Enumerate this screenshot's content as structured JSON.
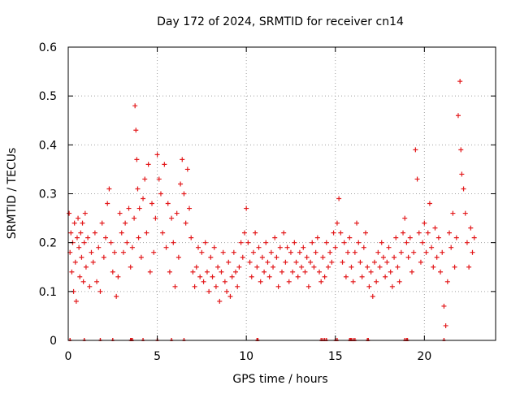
{
  "chart_data": {
    "type": "scatter",
    "title": "Day 172 of 2024, SRMTID for receiver cn14",
    "xlabel": "GPS time / hours",
    "ylabel": "SRMTID / TECUs",
    "xlim": [
      0,
      24
    ],
    "ylim": [
      0,
      0.6
    ],
    "xticks": [
      0,
      5,
      10,
      15,
      20
    ],
    "yticks": [
      0,
      0.1,
      0.2,
      0.3,
      0.4,
      0.5,
      0.6
    ],
    "x_tick_labels": [
      "0",
      "5",
      "10",
      "15",
      "20"
    ],
    "y_tick_labels": [
      "0",
      "0.1",
      "0.2",
      "0.3",
      "0.4",
      "0.5",
      "0.6"
    ],
    "grid": true,
    "marker": "+",
    "series": [
      {
        "name": "SRMTID",
        "color": "#e31a1c",
        "points": [
          [
            0.05,
            0.26
          ],
          [
            0.1,
            0.18
          ],
          [
            0.15,
            0.22
          ],
          [
            0.2,
            0.14
          ],
          [
            0.25,
            0.2
          ],
          [
            0.3,
            0.1
          ],
          [
            0.35,
            0.24
          ],
          [
            0.4,
            0.16
          ],
          [
            0.45,
            0.08
          ],
          [
            0.5,
            0.21
          ],
          [
            0.55,
            0.25
          ],
          [
            0.6,
            0.19
          ],
          [
            0.65,
            0.13
          ],
          [
            0.7,
            0.22
          ],
          [
            0.75,
            0.17
          ],
          [
            0.8,
            0.24
          ],
          [
            0.85,
            0.12
          ],
          [
            0.9,
            0.2
          ],
          [
            0.95,
            0.26
          ],
          [
            1.0,
            0.15
          ],
          [
            1.1,
            0.21
          ],
          [
            1.2,
            0.11
          ],
          [
            1.3,
            0.18
          ],
          [
            1.4,
            0.16
          ],
          [
            1.5,
            0.22
          ],
          [
            1.6,
            0.12
          ],
          [
            1.7,
            0.19
          ],
          [
            1.8,
            0.1
          ],
          [
            1.9,
            0.24
          ],
          [
            2.0,
            0.17
          ],
          [
            2.1,
            0.21
          ],
          [
            2.2,
            0.28
          ],
          [
            2.3,
            0.31
          ],
          [
            2.4,
            0.2
          ],
          [
            2.5,
            0.14
          ],
          [
            2.6,
            0.18
          ],
          [
            2.7,
            0.09
          ],
          [
            2.8,
            0.13
          ],
          [
            2.9,
            0.26
          ],
          [
            3.0,
            0.22
          ],
          [
            3.1,
            0.18
          ],
          [
            3.2,
            0.24
          ],
          [
            3.3,
            0.2
          ],
          [
            3.4,
            0.27
          ],
          [
            3.5,
            0.15
          ],
          [
            3.6,
            0.19
          ],
          [
            3.7,
            0.25
          ],
          [
            3.75,
            0.48
          ],
          [
            3.8,
            0.43
          ],
          [
            3.85,
            0.37
          ],
          [
            3.9,
            0.31
          ],
          [
            3.95,
            0.21
          ],
          [
            4.0,
            0.27
          ],
          [
            4.1,
            0.17
          ],
          [
            4.2,
            0.29
          ],
          [
            4.3,
            0.33
          ],
          [
            4.4,
            0.22
          ],
          [
            4.5,
            0.36
          ],
          [
            4.6,
            0.14
          ],
          [
            4.7,
            0.28
          ],
          [
            4.8,
            0.18
          ],
          [
            4.9,
            0.25
          ],
          [
            5.0,
            0.38
          ],
          [
            5.1,
            0.33
          ],
          [
            5.2,
            0.3
          ],
          [
            5.3,
            0.22
          ],
          [
            5.4,
            0.36
          ],
          [
            5.5,
            0.19
          ],
          [
            5.6,
            0.28
          ],
          [
            5.7,
            0.14
          ],
          [
            5.8,
            0.25
          ],
          [
            5.9,
            0.2
          ],
          [
            6.0,
            0.11
          ],
          [
            6.1,
            0.26
          ],
          [
            6.2,
            0.17
          ],
          [
            6.3,
            0.32
          ],
          [
            6.4,
            0.37
          ],
          [
            6.5,
            0.3
          ],
          [
            6.6,
            0.24
          ],
          [
            6.7,
            0.35
          ],
          [
            6.8,
            0.27
          ],
          [
            6.9,
            0.21
          ],
          [
            7.0,
            0.14
          ],
          [
            7.1,
            0.11
          ],
          [
            7.2,
            0.15
          ],
          [
            7.3,
            0.19
          ],
          [
            7.4,
            0.13
          ],
          [
            7.5,
            0.18
          ],
          [
            7.6,
            0.12
          ],
          [
            7.7,
            0.2
          ],
          [
            7.8,
            0.14
          ],
          [
            7.9,
            0.1
          ],
          [
            8.0,
            0.17
          ],
          [
            8.1,
            0.13
          ],
          [
            8.2,
            0.19
          ],
          [
            8.3,
            0.11
          ],
          [
            8.4,
            0.15
          ],
          [
            8.5,
            0.08
          ],
          [
            8.6,
            0.14
          ],
          [
            8.7,
            0.18
          ],
          [
            8.8,
            0.12
          ],
          [
            8.9,
            0.1
          ],
          [
            9.0,
            0.16
          ],
          [
            9.1,
            0.09
          ],
          [
            9.2,
            0.13
          ],
          [
            9.3,
            0.18
          ],
          [
            9.4,
            0.14
          ],
          [
            9.5,
            0.11
          ],
          [
            9.6,
            0.15
          ],
          [
            9.7,
            0.2
          ],
          [
            9.8,
            0.17
          ],
          [
            9.9,
            0.22
          ],
          [
            10.0,
            0.27
          ],
          [
            10.1,
            0.2
          ],
          [
            10.2,
            0.16
          ],
          [
            10.3,
            0.13
          ],
          [
            10.4,
            0.18
          ],
          [
            10.5,
            0.22
          ],
          [
            10.6,
            0.15
          ],
          [
            10.7,
            0.19
          ],
          [
            10.8,
            0.12
          ],
          [
            10.9,
            0.17
          ],
          [
            11.0,
            0.14
          ],
          [
            11.1,
            0.2
          ],
          [
            11.2,
            0.16
          ],
          [
            11.3,
            0.13
          ],
          [
            11.4,
            0.18
          ],
          [
            11.5,
            0.15
          ],
          [
            11.6,
            0.21
          ],
          [
            11.7,
            0.17
          ],
          [
            11.8,
            0.11
          ],
          [
            11.9,
            0.19
          ],
          [
            12.0,
            0.14
          ],
          [
            12.1,
            0.22
          ],
          [
            12.2,
            0.16
          ],
          [
            12.3,
            0.19
          ],
          [
            12.4,
            0.12
          ],
          [
            12.5,
            0.18
          ],
          [
            12.6,
            0.14
          ],
          [
            12.7,
            0.2
          ],
          [
            12.8,
            0.16
          ],
          [
            12.9,
            0.13
          ],
          [
            13.0,
            0.18
          ],
          [
            13.1,
            0.15
          ],
          [
            13.2,
            0.19
          ],
          [
            13.3,
            0.14
          ],
          [
            13.4,
            0.17
          ],
          [
            13.5,
            0.11
          ],
          [
            13.6,
            0.16
          ],
          [
            13.7,
            0.2
          ],
          [
            13.8,
            0.15
          ],
          [
            13.9,
            0.18
          ],
          [
            14.0,
            0.21
          ],
          [
            14.1,
            0.14
          ],
          [
            14.2,
            0.12
          ],
          [
            14.3,
            0.17
          ],
          [
            14.4,
            0.13
          ],
          [
            14.5,
            0.2
          ],
          [
            14.6,
            0.15
          ],
          [
            14.7,
            0.18
          ],
          [
            14.8,
            0.16
          ],
          [
            14.9,
            0.22
          ],
          [
            15.0,
            0.19
          ],
          [
            15.1,
            0.24
          ],
          [
            15.2,
            0.29
          ],
          [
            15.3,
            0.22
          ],
          [
            15.4,
            0.16
          ],
          [
            15.5,
            0.2
          ],
          [
            15.6,
            0.13
          ],
          [
            15.7,
            0.18
          ],
          [
            15.8,
            0.21
          ],
          [
            15.9,
            0.15
          ],
          [
            16.0,
            0.12
          ],
          [
            16.1,
            0.18
          ],
          [
            16.2,
            0.24
          ],
          [
            16.3,
            0.2
          ],
          [
            16.4,
            0.16
          ],
          [
            16.5,
            0.13
          ],
          [
            16.6,
            0.19
          ],
          [
            16.7,
            0.22
          ],
          [
            16.8,
            0.15
          ],
          [
            16.9,
            0.11
          ],
          [
            17.0,
            0.14
          ],
          [
            17.1,
            0.09
          ],
          [
            17.2,
            0.16
          ],
          [
            17.3,
            0.12
          ],
          [
            17.4,
            0.18
          ],
          [
            17.5,
            0.15
          ],
          [
            17.6,
            0.2
          ],
          [
            17.7,
            0.17
          ],
          [
            17.8,
            0.13
          ],
          [
            17.9,
            0.16
          ],
          [
            18.0,
            0.19
          ],
          [
            18.1,
            0.14
          ],
          [
            18.2,
            0.11
          ],
          [
            18.3,
            0.17
          ],
          [
            18.4,
            0.21
          ],
          [
            18.5,
            0.15
          ],
          [
            18.6,
            0.12
          ],
          [
            18.7,
            0.18
          ],
          [
            18.8,
            0.22
          ],
          [
            18.9,
            0.25
          ],
          [
            19.0,
            0.2
          ],
          [
            19.1,
            0.17
          ],
          [
            19.2,
            0.21
          ],
          [
            19.3,
            0.14
          ],
          [
            19.4,
            0.18
          ],
          [
            19.5,
            0.39
          ],
          [
            19.6,
            0.33
          ],
          [
            19.7,
            0.22
          ],
          [
            19.8,
            0.16
          ],
          [
            19.9,
            0.2
          ],
          [
            20.0,
            0.24
          ],
          [
            20.1,
            0.18
          ],
          [
            20.2,
            0.22
          ],
          [
            20.3,
            0.28
          ],
          [
            20.4,
            0.19
          ],
          [
            20.5,
            0.15
          ],
          [
            20.6,
            0.23
          ],
          [
            20.7,
            0.17
          ],
          [
            20.8,
            0.21
          ],
          [
            20.9,
            0.14
          ],
          [
            21.0,
            0.18
          ],
          [
            21.1,
            0.07
          ],
          [
            21.2,
            0.03
          ],
          [
            21.3,
            0.12
          ],
          [
            21.4,
            0.22
          ],
          [
            21.5,
            0.19
          ],
          [
            21.6,
            0.26
          ],
          [
            21.7,
            0.15
          ],
          [
            21.8,
            0.21
          ],
          [
            21.9,
            0.46
          ],
          [
            22.0,
            0.53
          ],
          [
            22.05,
            0.39
          ],
          [
            22.1,
            0.34
          ],
          [
            22.2,
            0.31
          ],
          [
            22.3,
            0.26
          ],
          [
            22.4,
            0.2
          ],
          [
            22.5,
            0.15
          ],
          [
            22.6,
            0.23
          ],
          [
            22.7,
            0.18
          ],
          [
            22.8,
            0.21
          ]
        ]
      }
    ],
    "zero_markers_x": [
      0.1,
      0.9,
      1.8,
      2.5,
      3.5,
      3.55,
      3.6,
      4.2,
      5.0,
      5.8,
      6.5,
      10.6,
      10.65,
      14.2,
      14.3,
      14.4,
      14.5,
      15.0,
      15.1,
      15.8,
      15.85,
      15.9,
      16.0,
      16.1,
      16.8,
      16.85,
      18.9,
      19.0,
      19.05,
      21.1
    ]
  }
}
